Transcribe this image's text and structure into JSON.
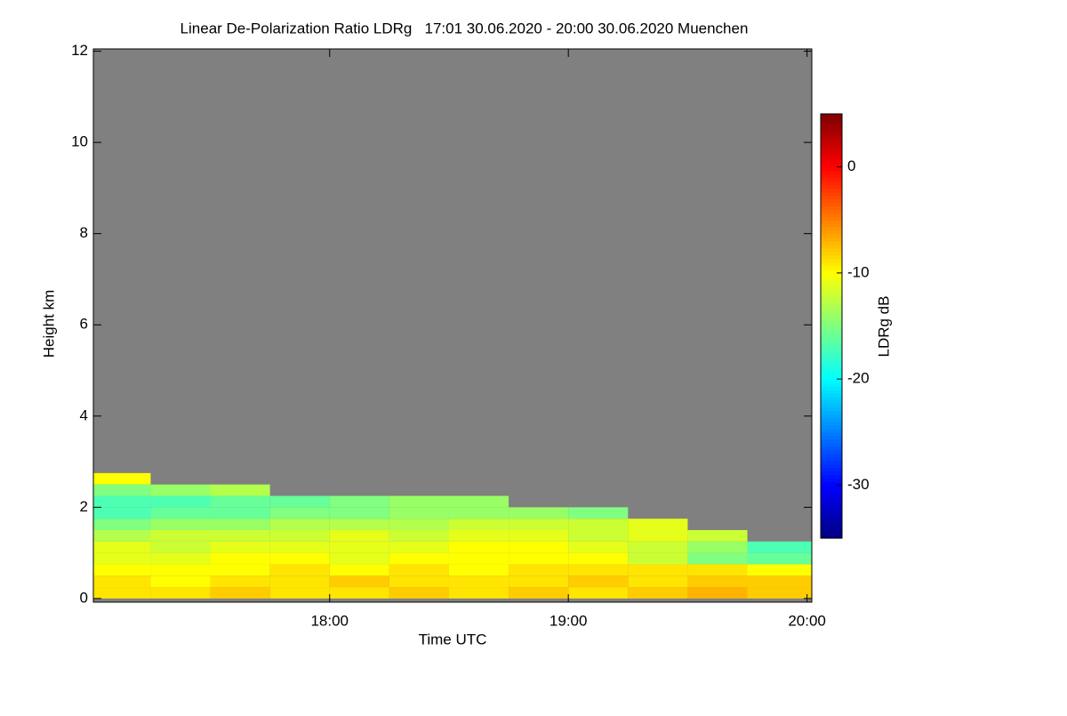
{
  "chart_data": {
    "type": "heatmap",
    "title": "Linear De-Polarization Ratio LDRg   17:01 30.06.2020 - 20:00 30.06.2020 Muenchen",
    "x_label": "Time UTC",
    "y_label": "Height km",
    "colorbar_label": "LDRg dB",
    "background_color": "#808080",
    "x_edges": [
      17.01,
      17.25,
      17.5,
      17.75,
      18.0,
      18.25,
      18.5,
      18.75,
      19.0,
      19.25,
      19.5,
      19.75,
      20.02
    ],
    "y_edges": [
      0,
      0.25,
      0.5,
      0.75,
      1.0,
      1.25,
      1.5,
      1.75,
      2.0,
      2.25,
      2.5,
      2.75,
      3.0
    ],
    "values": [
      [
        -9,
        -9,
        -8,
        -9,
        -9,
        -8,
        -9,
        -8,
        -9,
        -8,
        -7,
        -8
      ],
      [
        -9,
        -10,
        -9,
        -9,
        -8,
        -9,
        -9,
        -9,
        -8,
        -9,
        -8,
        -8
      ],
      [
        -10,
        -10,
        -10,
        -9,
        -10,
        -9,
        -10,
        -9,
        -9,
        -9,
        -9,
        -10
      ],
      [
        -11,
        -11,
        -10,
        -10,
        -11,
        -10,
        -10,
        -10,
        -10,
        -12,
        -15,
        -16
      ],
      [
        -11,
        -12,
        -11,
        -11,
        -11,
        -11,
        -10,
        -10,
        -11,
        -12,
        -14,
        -17
      ],
      [
        -13,
        -12,
        -12,
        -12,
        -11,
        -12,
        -11,
        -11,
        -12,
        -11,
        -12,
        null
      ],
      [
        -15,
        -14,
        -14,
        -13,
        -13,
        -13,
        -12,
        -12,
        -12,
        -11,
        null,
        null
      ],
      [
        -17,
        -16,
        -16,
        -15,
        -15,
        -14,
        -14,
        -14,
        -15,
        null,
        null,
        null
      ],
      [
        -17,
        -17,
        -16,
        -16,
        -15,
        -14,
        -14,
        null,
        null,
        null,
        null,
        null
      ],
      [
        -15,
        -14,
        -13,
        null,
        null,
        null,
        null,
        null,
        null,
        null,
        null,
        null
      ],
      [
        -10,
        null,
        null,
        null,
        null,
        null,
        null,
        null,
        null,
        null,
        null,
        null
      ],
      [
        null,
        null,
        null,
        null,
        null,
        null,
        null,
        null,
        null,
        null,
        null,
        null
      ]
    ],
    "xlim": [
      17.01,
      20.02
    ],
    "xticks": [
      {
        "value": 18,
        "label": "18:00"
      },
      {
        "value": 19,
        "label": "19:00"
      },
      {
        "value": 20,
        "label": "20:00"
      }
    ],
    "ylim": [
      -0.08,
      12.05
    ],
    "yticks": [
      0,
      2,
      4,
      6,
      8,
      10,
      12
    ],
    "clim": [
      -35,
      5
    ],
    "cticks": [
      0,
      -10,
      -20,
      -30
    ],
    "colormap": "jet"
  }
}
